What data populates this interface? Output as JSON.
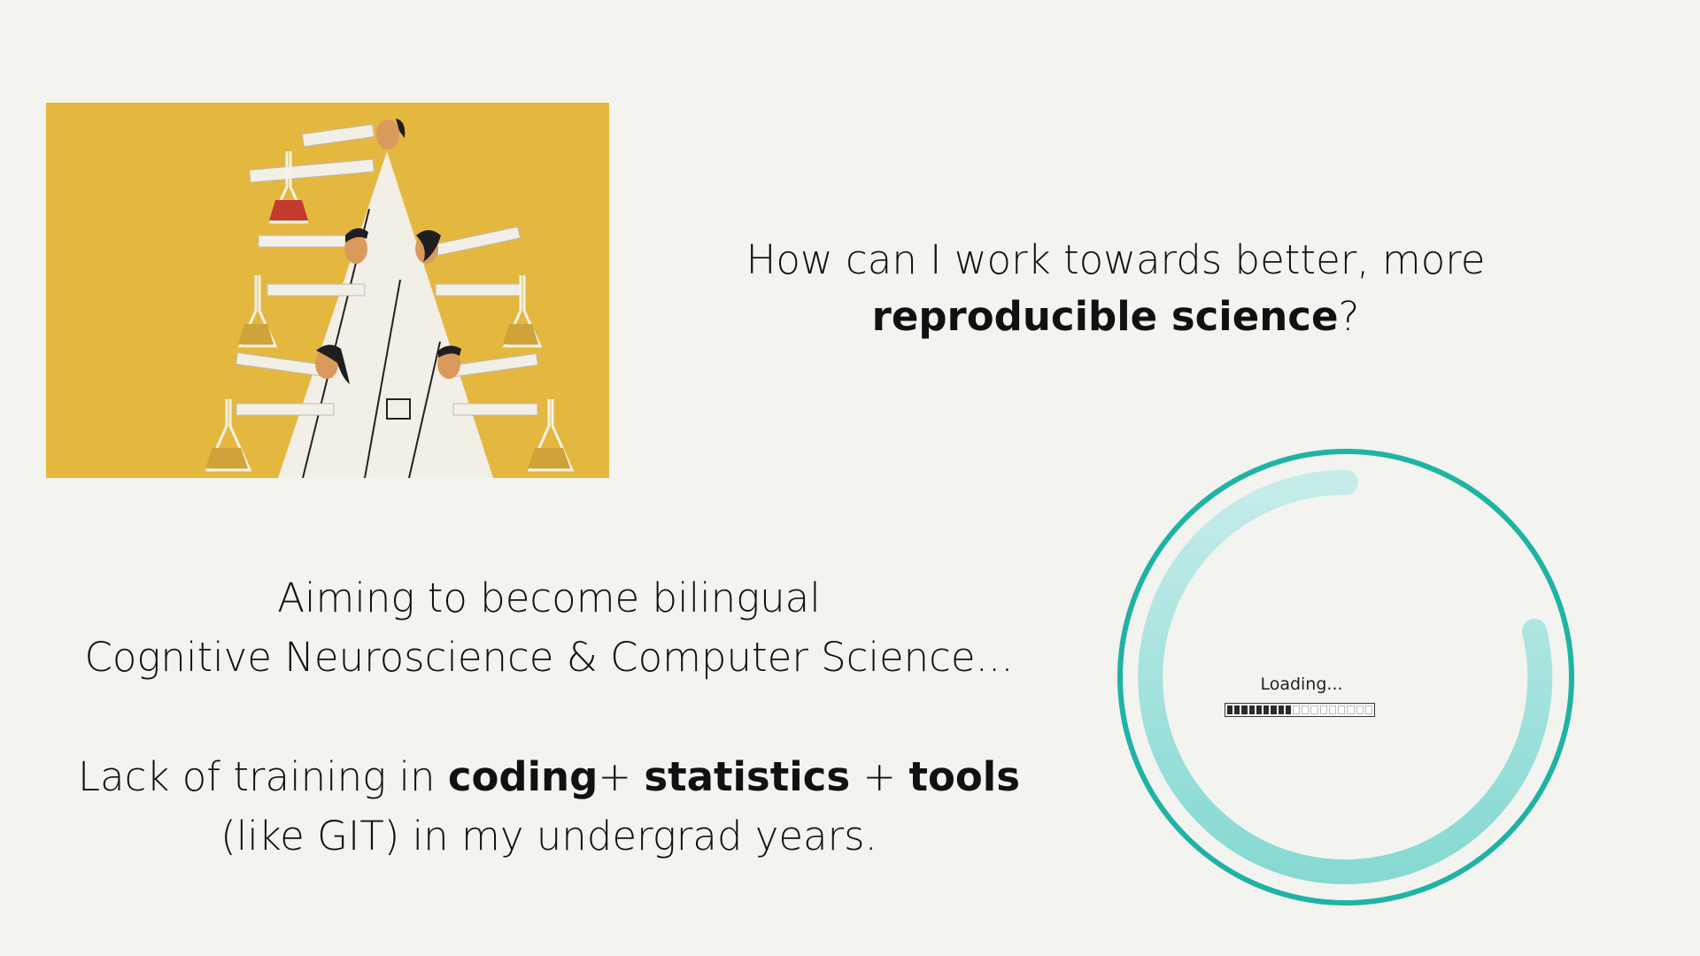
{
  "illustration": {
    "icon": "scientists-with-flasks-illustration"
  },
  "question": {
    "before": "How can I work towards better, more ",
    "bold": "reproducible science",
    "after": "?"
  },
  "bilingual": {
    "line1": "Aiming to become bilingual",
    "line2": "Cognitive Neuroscience & Computer Science..."
  },
  "lack": {
    "t1": "Lack of training in ",
    "b1": "coding",
    "t2": "+ ",
    "b2": "statistics",
    "t3": " + ",
    "b3": "tools",
    "t4": " (like GIT) in my undergrad years."
  },
  "loader": {
    "label": "Loading...",
    "progress": 0.5,
    "ring_color": "#1fb3a5",
    "arc_color": "#8fdcd6"
  }
}
